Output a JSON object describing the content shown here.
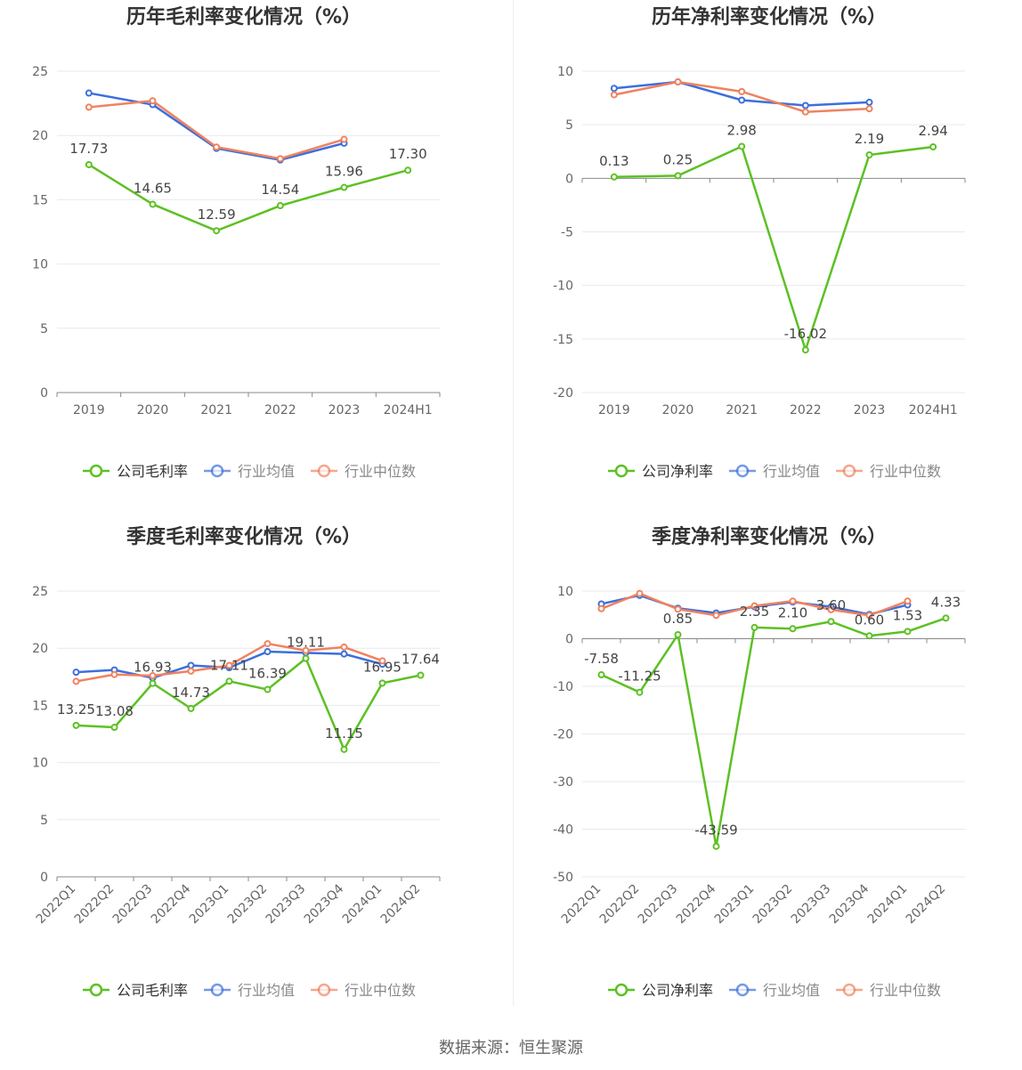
{
  "source": "数据来源：恒生聚源",
  "colors": {
    "company": "#5cc123",
    "avg": "#3d6fdc",
    "median": "#f0825f"
  },
  "chart_data": [
    {
      "type": "line",
      "title": "历年毛利率变化情况（%）",
      "categories": [
        "2019",
        "2020",
        "2021",
        "2022",
        "2023",
        "2024H1"
      ],
      "ylim": [
        0,
        25
      ],
      "yticks": [
        0,
        5,
        10,
        15,
        20,
        25
      ],
      "series": [
        {
          "name": "公司毛利率",
          "role": "company",
          "values": [
            17.73,
            14.65,
            12.59,
            14.54,
            15.96,
            17.3
          ],
          "labels": [
            "17.73",
            "14.65",
            "12.59",
            "14.54",
            "15.96",
            "17.30"
          ]
        },
        {
          "name": "行业均值",
          "role": "avg",
          "values": [
            23.3,
            22.4,
            19.0,
            18.1,
            19.4,
            null
          ]
        },
        {
          "name": "行业中位数",
          "role": "median",
          "values": [
            22.2,
            22.7,
            19.1,
            18.2,
            19.7,
            null
          ]
        }
      ]
    },
    {
      "type": "line",
      "title": "历年净利率变化情况（%）",
      "categories": [
        "2019",
        "2020",
        "2021",
        "2022",
        "2023",
        "2024H1"
      ],
      "ylim": [
        -20,
        10
      ],
      "yticks": [
        -20,
        -15,
        -10,
        -5,
        0,
        5,
        10
      ],
      "series": [
        {
          "name": "公司净利率",
          "role": "company",
          "values": [
            0.13,
            0.25,
            2.98,
            -16.02,
            2.19,
            2.94
          ],
          "labels": [
            "0.13",
            "0.25",
            "2.98",
            "-16.02",
            "2.19",
            "2.94"
          ]
        },
        {
          "name": "行业均值",
          "role": "avg",
          "values": [
            8.4,
            9.0,
            7.3,
            6.8,
            7.1,
            null
          ]
        },
        {
          "name": "行业中位数",
          "role": "median",
          "values": [
            7.8,
            9.0,
            8.1,
            6.2,
            6.5,
            null
          ]
        }
      ]
    },
    {
      "type": "line",
      "title": "季度毛利率变化情况（%）",
      "categories": [
        "2022Q1",
        "2022Q2",
        "2022Q3",
        "2022Q4",
        "2023Q1",
        "2023Q2",
        "2023Q3",
        "2023Q4",
        "2024Q1",
        "2024Q2"
      ],
      "ylim": [
        0,
        25
      ],
      "yticks": [
        0,
        5,
        10,
        15,
        20,
        25
      ],
      "series": [
        {
          "name": "公司毛利率",
          "role": "company",
          "values": [
            13.25,
            13.08,
            16.93,
            14.73,
            17.11,
            16.39,
            19.11,
            11.15,
            16.95,
            17.64
          ],
          "labels": [
            "13.25",
            "13.08",
            "16.93",
            "14.73",
            "17.11",
            "16.39",
            "19.11",
            "11.15",
            "16.95",
            "17.64"
          ]
        },
        {
          "name": "行业均值",
          "role": "avg",
          "values": [
            17.9,
            18.1,
            17.4,
            18.5,
            18.3,
            19.7,
            19.6,
            19.5,
            18.6,
            null
          ]
        },
        {
          "name": "行业中位数",
          "role": "median",
          "values": [
            17.1,
            17.7,
            17.6,
            18.0,
            18.5,
            20.4,
            19.8,
            20.1,
            18.9,
            null
          ]
        }
      ]
    },
    {
      "type": "line",
      "title": "季度净利率变化情况（%）",
      "categories": [
        "2022Q1",
        "2022Q2",
        "2022Q3",
        "2022Q4",
        "2023Q1",
        "2023Q2",
        "2023Q3",
        "2023Q4",
        "2024Q1",
        "2024Q2"
      ],
      "ylim": [
        -50,
        10
      ],
      "yticks": [
        -50,
        -40,
        -30,
        -20,
        -10,
        0,
        10
      ],
      "series": [
        {
          "name": "公司净利率",
          "role": "company",
          "values": [
            -7.58,
            -11.25,
            0.85,
            -43.59,
            2.35,
            2.1,
            3.6,
            0.6,
            1.53,
            4.33
          ],
          "labels": [
            "-7.58",
            "-11.25",
            "0.85",
            "-43.59",
            "2.35",
            "2.10",
            "3.60",
            "0.60",
            "1.53",
            "4.33"
          ]
        },
        {
          "name": "行业均值",
          "role": "avg",
          "values": [
            7.3,
            9.1,
            6.4,
            5.4,
            6.7,
            7.7,
            6.7,
            5.1,
            7.1,
            null
          ]
        },
        {
          "name": "行业中位数",
          "role": "median",
          "values": [
            6.3,
            9.5,
            6.2,
            4.9,
            6.9,
            7.9,
            6.1,
            4.9,
            7.9,
            null
          ]
        }
      ]
    }
  ]
}
